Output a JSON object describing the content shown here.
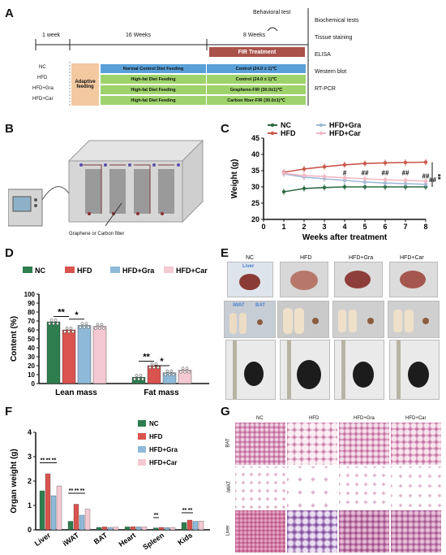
{
  "panels": {
    "A": "A",
    "B": "B",
    "C": "C",
    "D": "D",
    "E": "E",
    "F": "F",
    "G": "G"
  },
  "panelA": {
    "phase1": "1 week",
    "phase2": "16 Weeks",
    "phase3": "8 Weeks",
    "behavioral": "Behavioral test",
    "fir_treatment": "FIR Treatment",
    "adaptive": "Adaptive feeding",
    "groups": [
      "NC",
      "HFD",
      "HFD+Gra",
      "HFD+Car"
    ],
    "diets": [
      "Normal Control Diet Feeding",
      "High-fat Diet Feeding",
      "High-fat Diet Feeding",
      "High-fat Diet Feeding"
    ],
    "treatments": [
      "Control (24.0 ± 1)℃",
      "Control (24.0 ± 1)℃",
      "Graphene-FIR (30.0±1)℃",
      "Carbon fiber-FIR (30.0±1)℃"
    ],
    "tests": [
      "Biochemical tests",
      "Tissue staining",
      "ELISA",
      "Western blot",
      "RT-PCR"
    ]
  },
  "panelB": {
    "label": "Graphene or Carbon fiber"
  },
  "colors": {
    "nc": "#2e7d4f",
    "hfd": "#d9534f",
    "gra": "#8fb9d8",
    "car": "#f4c9d2",
    "c_nc": "#2e6b45",
    "c_hfd": "#c9564c",
    "c_gra": "#9fb8d8",
    "c_car": "#f2b8c4"
  },
  "chart_data": [
    {
      "type": "line",
      "title": "",
      "xlabel": "Weeks after treatment",
      "ylabel": "Weight (g)",
      "x": [
        1,
        2,
        3,
        4,
        5,
        6,
        7,
        8
      ],
      "xlim": [
        0,
        8
      ],
      "ylim": [
        20,
        45
      ],
      "yticks": [
        20,
        25,
        30,
        35,
        40,
        45
      ],
      "legend": [
        "NC",
        "HFD",
        "HFD+Gra",
        "HFD+Car"
      ],
      "series": [
        {
          "name": "NC",
          "values": [
            28.5,
            29.5,
            29.8,
            30.0,
            30.0,
            30.0,
            30.0,
            30.0
          ]
        },
        {
          "name": "HFD",
          "values": [
            34.5,
            35.5,
            36.2,
            36.8,
            37.2,
            37.4,
            37.5,
            37.6
          ]
        },
        {
          "name": "HFD+Gra",
          "values": [
            34.0,
            33.0,
            32.5,
            32.0,
            31.5,
            31.2,
            31.0,
            30.8
          ]
        },
        {
          "name": "HFD+Car",
          "values": [
            34.2,
            33.5,
            33.2,
            32.8,
            32.5,
            32.2,
            32.0,
            31.8
          ]
        }
      ],
      "annotations": [
        "#",
        "##",
        "##",
        "##",
        "##",
        "##",
        "**"
      ]
    },
    {
      "type": "bar",
      "ylabel": "Content (%)",
      "categories": [
        "Lean mass",
        "Fat mass"
      ],
      "ylim": [
        0,
        100
      ],
      "yticks": [
        0,
        10,
        20,
        30,
        40,
        50,
        60,
        70,
        80,
        90,
        100
      ],
      "legend": [
        "NC",
        "HFD",
        "HFD+Gra",
        "HFD+Car"
      ],
      "series": [
        {
          "name": "NC",
          "values": [
            69,
            7
          ]
        },
        {
          "name": "HFD",
          "values": [
            60,
            20
          ]
        },
        {
          "name": "HFD+Gra",
          "values": [
            65,
            12
          ]
        },
        {
          "name": "HFD+Car",
          "values": [
            64,
            15
          ]
        }
      ],
      "annotations": [
        "**",
        "*",
        "**",
        "*"
      ]
    },
    {
      "type": "bar",
      "ylabel": "Organ weight (g)",
      "categories": [
        "Liver",
        "iWAT",
        "BAT",
        "Heart",
        "Spleen",
        "Kids"
      ],
      "ylim": [
        0,
        4
      ],
      "yticks": [
        0,
        1,
        2,
        3,
        4
      ],
      "legend": [
        "NC",
        "HFD",
        "HFD+Gra",
        "HFD+Car"
      ],
      "series": [
        {
          "name": "NC",
          "values": [
            1.6,
            0.35,
            0.1,
            0.12,
            0.08,
            0.3
          ]
        },
        {
          "name": "HFD",
          "values": [
            2.3,
            1.05,
            0.12,
            0.13,
            0.1,
            0.4
          ]
        },
        {
          "name": "HFD+Gra",
          "values": [
            1.4,
            0.6,
            0.1,
            0.12,
            0.09,
            0.35
          ]
        },
        {
          "name": "HFD+Car",
          "values": [
            1.8,
            0.85,
            0.11,
            0.12,
            0.1,
            0.36
          ]
        }
      ],
      "annotations": [
        "**",
        "**",
        "**",
        "**",
        "**",
        "**",
        "**",
        "**",
        "**"
      ]
    }
  ],
  "panelE": {
    "groups": [
      "NC",
      "HFD",
      "HFD+Gra",
      "HFD+Car"
    ],
    "liver": "Liver",
    "iwat": "iWAT",
    "bat": "BAT"
  },
  "panelG": {
    "groups": [
      "NC",
      "HFD",
      "HFD+Gra",
      "HFD+Car"
    ],
    "rows": [
      "BAT",
      "iWAT",
      "Liver"
    ]
  }
}
